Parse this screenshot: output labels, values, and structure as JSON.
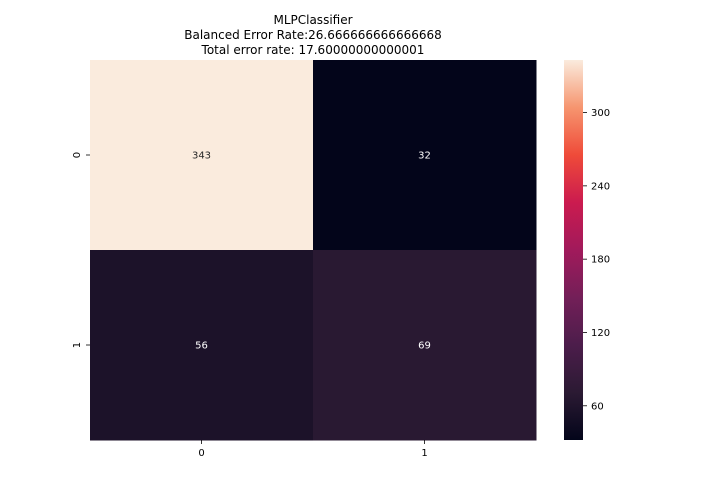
{
  "chart_data": {
    "type": "heatmap",
    "title_lines": [
      "MLPClassifier",
      "Balanced Error Rate:26.666666666666668",
      "Total error rate: 17.60000000000001"
    ],
    "x_tick_labels": [
      "0",
      "1"
    ],
    "y_tick_labels": [
      "0",
      "1"
    ],
    "matrix": [
      [
        343,
        32
      ],
      [
        56,
        69
      ]
    ],
    "colormap": "rocket",
    "colorbar": {
      "vmin": 32,
      "vmax": 343,
      "ticks": [
        60,
        120,
        180,
        240,
        300
      ],
      "tick_labels": [
        "60",
        "120",
        "180",
        "240",
        "300"
      ]
    },
    "cell_label_colors": {
      "light": "#262626",
      "dark": "#ffffff"
    }
  }
}
